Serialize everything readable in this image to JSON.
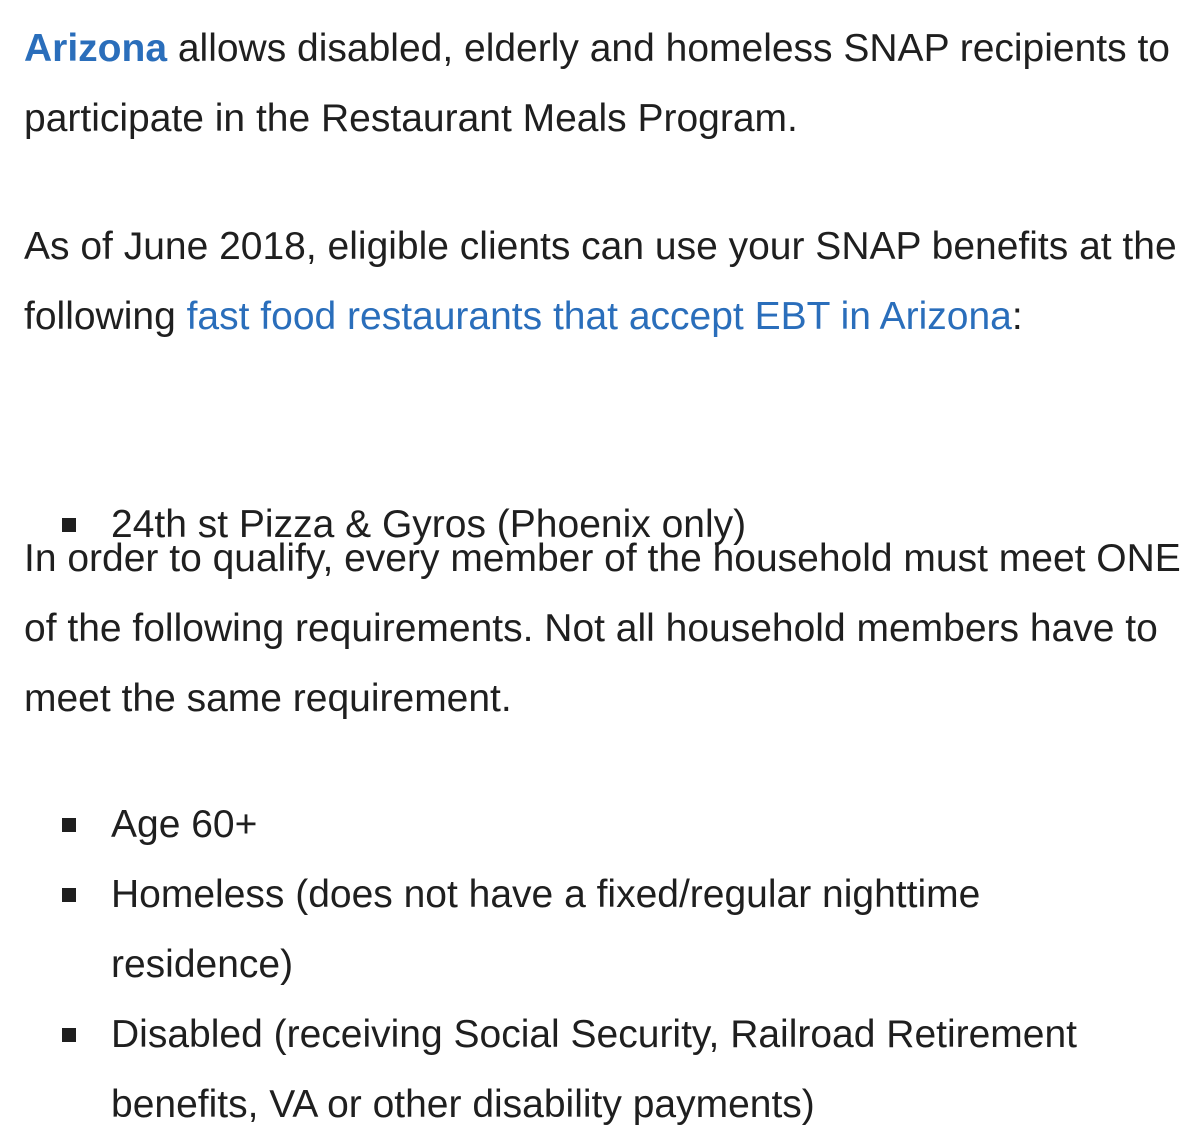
{
  "paragraph1": {
    "link_text": "Arizona",
    "text": " allows disabled, elderly and homeless SNAP recipients to participate in the Restaurant Meals Program."
  },
  "paragraph2": {
    "text_before": "As of June 2018, eligible clients can use your SNAP benefits at the following ",
    "link_text": "fast food restaurants that accept EBT in Arizona",
    "text_after": ":"
  },
  "cut_off_item": "24th st Pizza & Gyros (Phoenix only)",
  "paragraph3": {
    "text": "In order to qualify, every member of the household must meet ONE of the following requirements. Not all household members have to meet the same requirement."
  },
  "requirements": [
    "Age 60+",
    "Homeless (does not have a fixed/regular nighttime residence)",
    "Disabled (receiving Social Security, Railroad Retirement benefits, VA or other disability payments)"
  ]
}
